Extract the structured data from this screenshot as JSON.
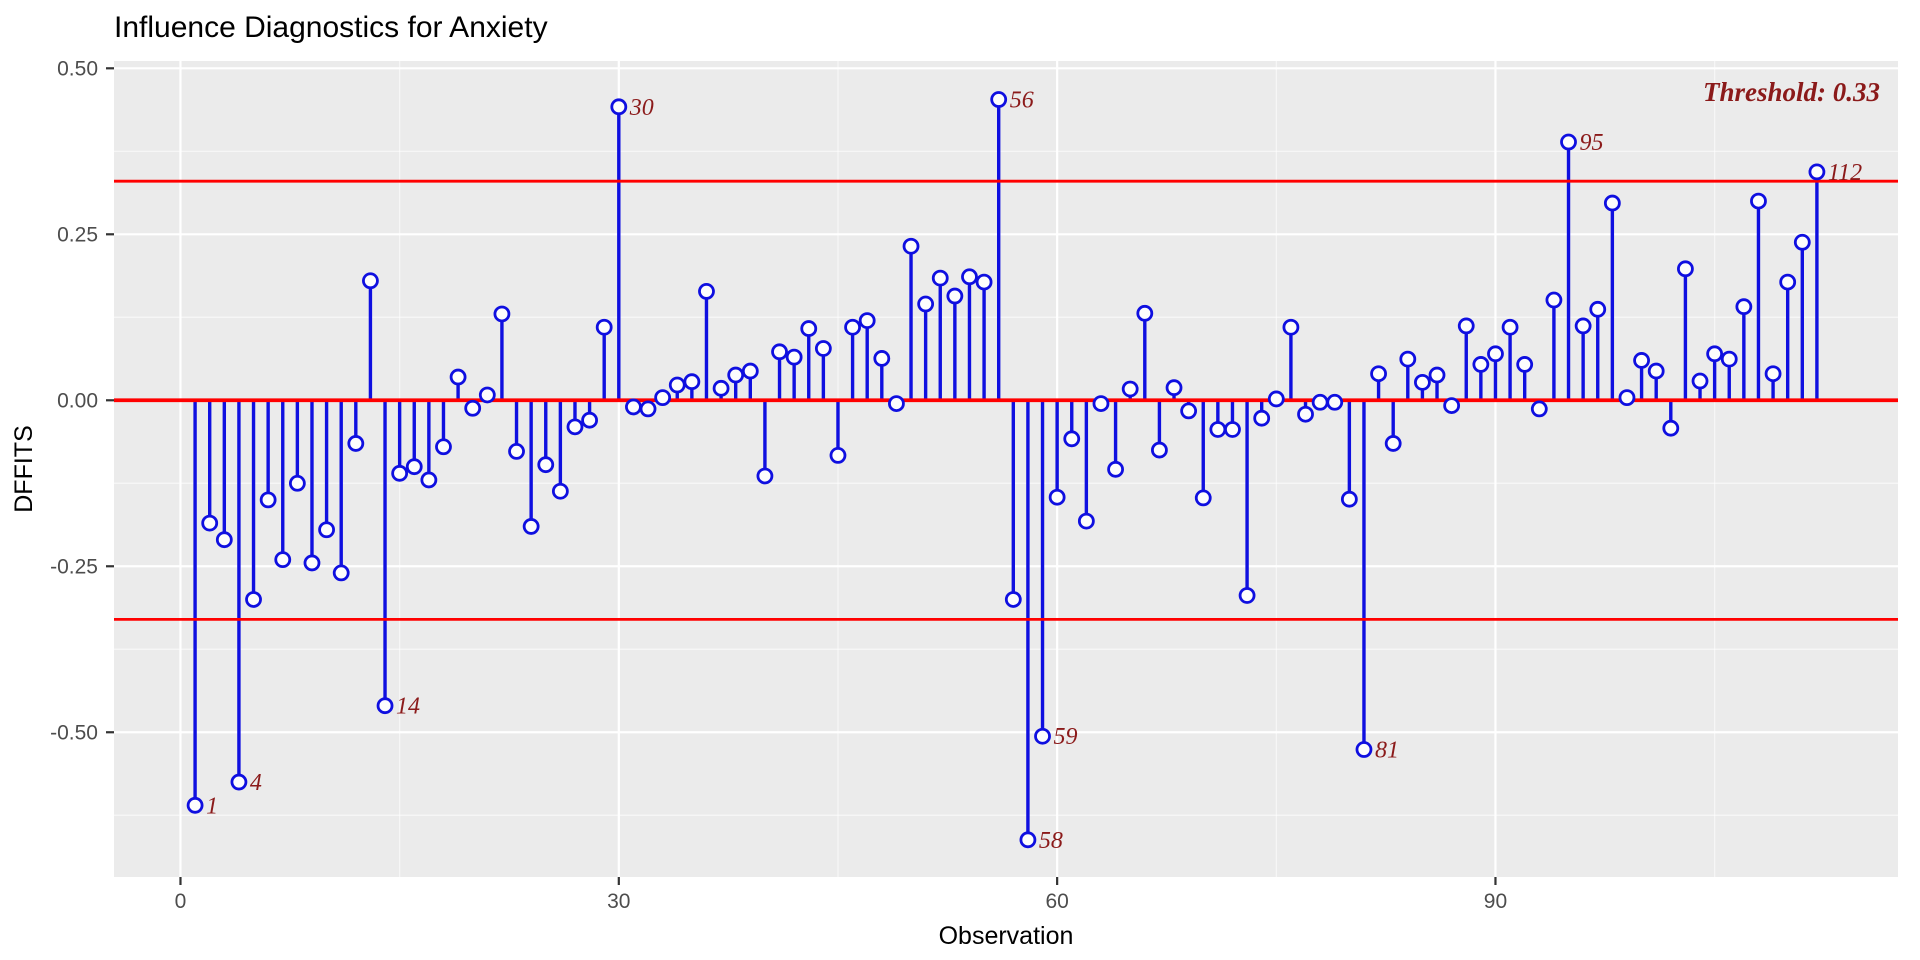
{
  "chart_data": {
    "type": "stem",
    "title": "Influence Diagnostics for Anxiety",
    "xlabel": "Observation",
    "ylabel": "DFFITS",
    "annotation": {
      "text": "Threshold: 0.33"
    },
    "thresholds": {
      "upper": 0.33,
      "lower": -0.33,
      "zero": 0
    },
    "x_description": "observation index 1..112",
    "values": [
      -0.61,
      -0.185,
      -0.21,
      -0.575,
      -0.3,
      -0.15,
      -0.24,
      -0.125,
      -0.245,
      -0.195,
      -0.26,
      -0.065,
      0.18,
      -0.46,
      -0.11,
      -0.1,
      -0.12,
      -0.07,
      0.035,
      -0.012,
      0.008,
      0.13,
      -0.077,
      -0.19,
      -0.097,
      -0.137,
      -0.04,
      -0.03,
      0.11,
      0.442,
      -0.01,
      -0.013,
      0.004,
      0.023,
      0.028,
      0.164,
      0.018,
      0.038,
      0.044,
      -0.114,
      0.073,
      0.065,
      0.108,
      0.078,
      -0.083,
      0.11,
      0.12,
      0.063,
      -0.005,
      0.232,
      0.145,
      0.184,
      0.157,
      0.186,
      0.178,
      0.453,
      -0.3,
      -0.662,
      -0.506,
      -0.146,
      -0.058,
      -0.182,
      -0.005,
      -0.104,
      0.017,
      0.131,
      -0.075,
      0.019,
      -0.016,
      -0.147,
      -0.044,
      -0.044,
      -0.294,
      -0.027,
      0.002,
      0.11,
      -0.021,
      -0.003,
      -0.003,
      -0.149,
      -0.526,
      0.04,
      -0.065,
      0.062,
      0.027,
      0.038,
      -0.008,
      0.112,
      0.054,
      0.07,
      0.11,
      0.054,
      -0.013,
      0.151,
      0.389,
      0.112,
      0.137,
      0.297,
      0.004,
      0.06,
      0.044,
      -0.042,
      0.198,
      0.029,
      0.07,
      0.062,
      0.141,
      0.3,
      0.04,
      0.178,
      0.238,
      0.344
    ],
    "labeled_points": [
      1,
      4,
      14,
      30,
      56,
      58,
      59,
      81,
      95,
      112
    ],
    "xticks": {
      "values": [
        0,
        30,
        60,
        90
      ],
      "labels": [
        "0",
        "30",
        "60",
        "90"
      ]
    },
    "yticks": {
      "values": [
        0.5,
        0.25,
        0.0,
        -0.25,
        -0.5
      ],
      "labels": [
        "0.50",
        "0.25",
        "0.00",
        "-0.25",
        "-0.50"
      ]
    },
    "xticks_minor": [
      15,
      45,
      75,
      105
    ],
    "yticks_minor": [
      0.375,
      0.125,
      -0.125,
      -0.375,
      -0.625
    ],
    "xlim": [
      -4.55,
      117.55
    ],
    "ylim": [
      -0.718,
      0.511
    ],
    "grid": true,
    "legend": "none",
    "colors": {
      "panel_background": "#EBEBEB",
      "grid_major": "#FFFFFF",
      "grid_minor": "rgba(255,255,255,0.6)",
      "stem": "#0F0FE0",
      "point_stroke": "#0F0FE0",
      "point_fill": "#FDFDFD",
      "reference_line": "#FF0000",
      "point_label": "#8B1A1A",
      "annotation": "#8B1A1A",
      "tick_text": "#4D4D4D",
      "tick_mark": "#333333",
      "title_text": "#000000"
    }
  }
}
